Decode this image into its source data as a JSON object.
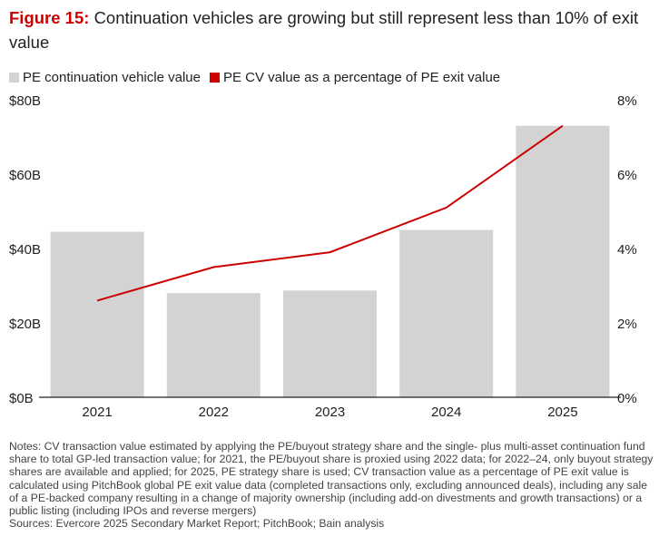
{
  "header": {
    "figure_label": "Figure 15:",
    "title": "Continuation vehicles are growing but still represent less than 10% of exit value"
  },
  "colors": {
    "bar": "#d3d3d3",
    "line": "#cc0000",
    "axis": "#222222",
    "accent": "#cc0000"
  },
  "chart_data": {
    "type": "bar",
    "title": "Continuation vehicles are growing but still represent less than 10% of exit value",
    "categories": [
      "2021",
      "2022",
      "2023",
      "2024",
      "2025"
    ],
    "series": [
      {
        "name": "PE continuation vehicle value",
        "type": "bar",
        "axis": "left",
        "values": [
          44.5,
          28,
          28.7,
          45,
          73
        ]
      },
      {
        "name": "PE CV value as a percentage of PE exit value",
        "type": "line",
        "axis": "right",
        "values": [
          2.6,
          3.5,
          3.9,
          5.1,
          7.3
        ]
      }
    ],
    "y_left": {
      "ylim": [
        0,
        80
      ],
      "ticks": [
        "$0B",
        "$20B",
        "$40B",
        "$60B",
        "$80B"
      ],
      "tick_values": [
        0,
        20,
        40,
        60,
        80
      ]
    },
    "y_right": {
      "ylim": [
        0,
        8
      ],
      "ticks": [
        "0%",
        "2%",
        "4%",
        "6%",
        "8%"
      ],
      "tick_values": [
        0,
        2,
        4,
        6,
        8
      ]
    },
    "legend_position": "top-left",
    "grid": false
  },
  "notes": {
    "text": "Notes: CV transaction value estimated by applying the PE/buyout strategy share and the single- plus multi-asset continuation fund share to total GP-led transaction value; for 2021, the PE/buyout share is proxied using 2022 data; for 2022–24, only buyout strategy shares are available and applied; for 2025, PE strategy share is used; CV transaction value as a percentage of PE exit value is calculated using PitchBook global PE exit value data (completed transactions only, excluding announced deals), including any sale of a PE-backed company resulting in a change of majority ownership (including add-on divestments and growth transactions) or a public listing (including IPOs and reverse mergers)",
    "sources": "Sources: Evercore 2025 Secondary Market Report; PitchBook; Bain analysis"
  }
}
